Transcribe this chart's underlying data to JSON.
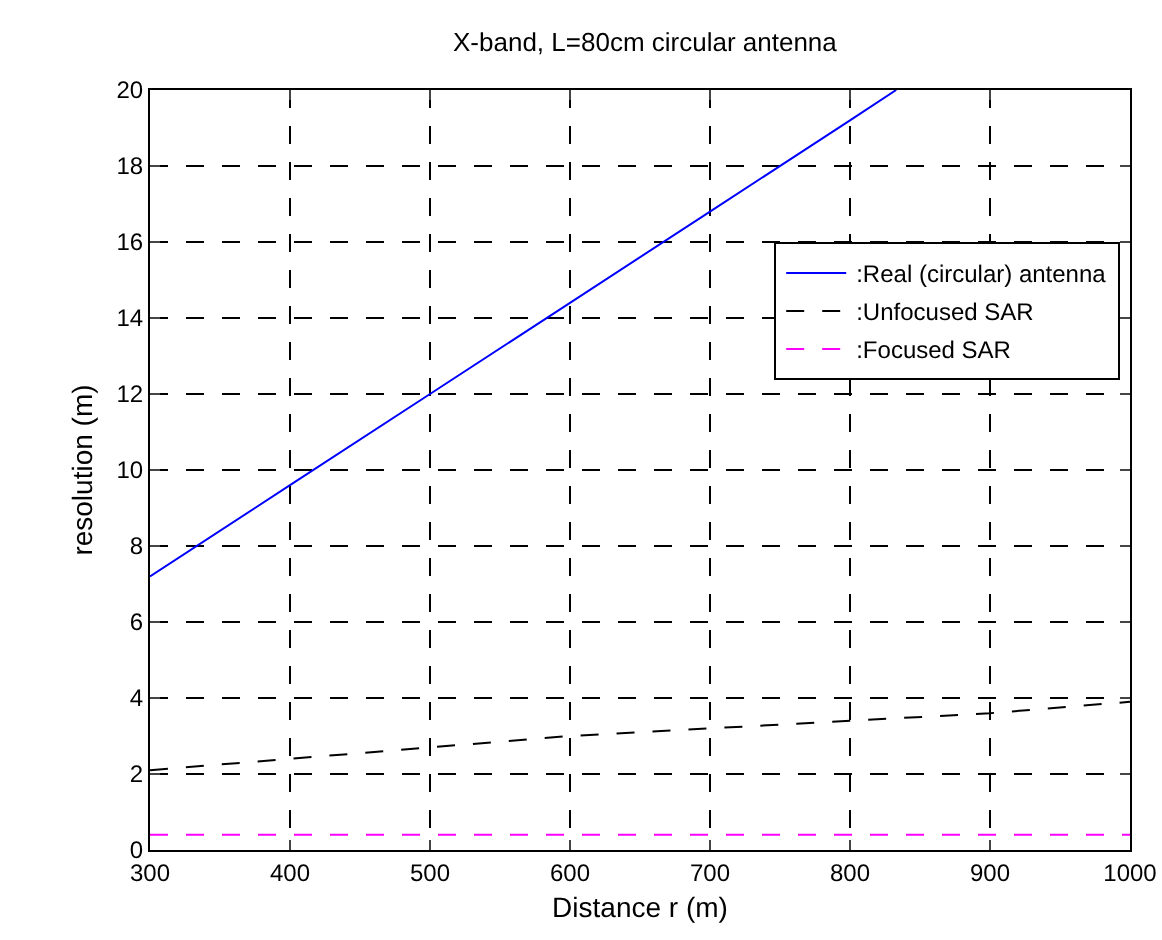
{
  "chart_data": {
    "type": "line",
    "title": "X-band, L=80cm circular antenna",
    "xlabel": "Distance r (m)",
    "ylabel": "resolution (m)",
    "series": [
      {
        "name": ":Real (circular) antenna",
        "color": "#0000ff",
        "line_style": "solid",
        "x": [
          300,
          400,
          500,
          600,
          700,
          800,
          833
        ],
        "values": [
          7.2,
          9.6,
          12.0,
          14.4,
          16.8,
          19.2,
          20.0
        ]
      },
      {
        "name": ":Unfocused SAR",
        "color": "#000000",
        "line_style": "dashed",
        "x": [
          300,
          400,
          500,
          600,
          700,
          800,
          900,
          1000
        ],
        "values": [
          2.1,
          2.4,
          2.7,
          3.0,
          3.2,
          3.4,
          3.6,
          3.9
        ]
      },
      {
        "name": ":Focused SAR",
        "color": "#ff00ff",
        "line_style": "dashed",
        "x": [
          300,
          1000
        ],
        "values": [
          0.4,
          0.4
        ]
      }
    ],
    "xlim": [
      300,
      1000
    ],
    "xticks": [
      300,
      400,
      500,
      600,
      700,
      800,
      900,
      1000
    ],
    "ylim": [
      0,
      20
    ],
    "yticks": [
      0,
      2,
      4,
      6,
      8,
      10,
      12,
      14,
      16,
      18,
      20
    ],
    "grid": true,
    "legend": "top right",
    "marker": "none"
  }
}
